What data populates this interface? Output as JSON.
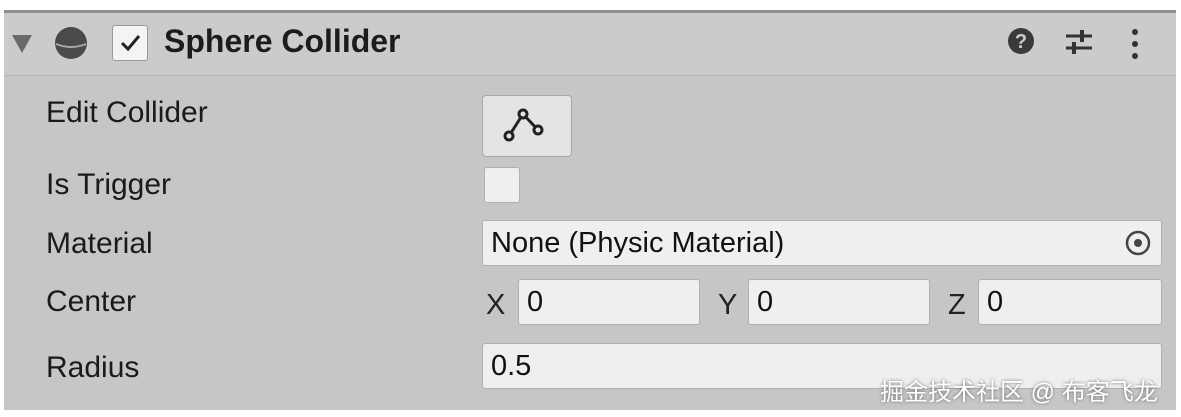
{
  "component": {
    "title": "Sphere Collider",
    "enabled": true
  },
  "header_icons": [
    "foldout-triangle-icon",
    "sphere-collider-icon",
    "help-icon",
    "preset-sliders-icon",
    "more-options-icon"
  ],
  "rows": {
    "edit_collider": {
      "label": "Edit Collider",
      "icon": "edit-collider-icon"
    },
    "is_trigger": {
      "label": "Is Trigger",
      "checked": false
    },
    "material": {
      "label": "Material",
      "value": "None (Physic Material)",
      "icon": "object-picker-icon"
    },
    "center": {
      "label": "Center",
      "x_label": "X",
      "x": "0",
      "y_label": "Y",
      "y": "0",
      "z_label": "Z",
      "z": "0"
    },
    "radius": {
      "label": "Radius",
      "value": "0.5"
    }
  },
  "watermark": "掘金技术社区 @ 布客飞龙"
}
